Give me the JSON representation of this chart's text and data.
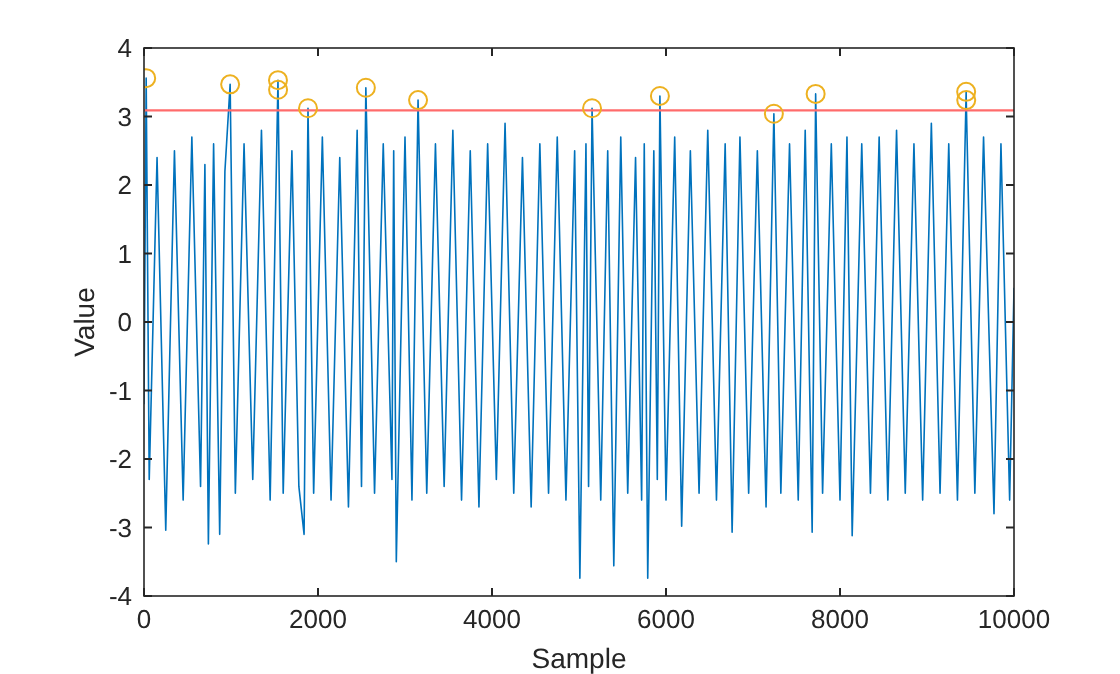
{
  "chart_data": {
    "type": "line",
    "xlabel": "Sample",
    "ylabel": "Value",
    "xlim": [
      0,
      10000
    ],
    "xticks": [
      0,
      2000,
      4000,
      6000,
      8000,
      10000
    ],
    "ylim": [
      -4,
      4
    ],
    "yticks": [
      -4,
      -3,
      -2,
      -1,
      0,
      1,
      2,
      3,
      4
    ],
    "grid": false,
    "series": [
      {
        "color": "#0072bd",
        "marker": "none",
        "x": [
          0,
          25,
          60,
          150,
          250,
          350,
          450,
          550,
          650,
          700,
          740,
          800,
          870,
          930,
          990,
          1050,
          1150,
          1250,
          1350,
          1450,
          1540,
          1541,
          1600,
          1700,
          1780,
          1840,
          1885,
          1950,
          2050,
          2150,
          2250,
          2350,
          2450,
          2500,
          2550,
          2650,
          2750,
          2850,
          2870,
          2900,
          3000,
          3080,
          3150,
          3250,
          3350,
          3450,
          3550,
          3650,
          3750,
          3850,
          3950,
          4050,
          4150,
          4250,
          4350,
          4450,
          4550,
          4650,
          4750,
          4850,
          4950,
          5010,
          5080,
          5110,
          5150,
          5250,
          5330,
          5400,
          5480,
          5560,
          5650,
          5720,
          5750,
          5790,
          5860,
          5900,
          5930,
          6000,
          6100,
          6180,
          6280,
          6380,
          6480,
          6580,
          6680,
          6760,
          6850,
          6950,
          7050,
          7150,
          7240,
          7320,
          7420,
          7520,
          7600,
          7680,
          7720,
          7800,
          7900,
          8000,
          8080,
          8140,
          8250,
          8350,
          8450,
          8550,
          8650,
          8750,
          8850,
          8950,
          9050,
          9150,
          9250,
          9350,
          9450,
          9451,
          9550,
          9650,
          9770,
          9850,
          9950,
          10000
        ],
        "values": [
          -1.2,
          3.56,
          -2.3,
          2.4,
          -3.04,
          2.5,
          -2.6,
          2.7,
          -2.4,
          2.3,
          -3.24,
          2.6,
          -3.1,
          2.2,
          3.47,
          -2.5,
          2.6,
          -2.3,
          2.8,
          -2.6,
          3.53,
          3.39,
          -2.5,
          2.5,
          -2.4,
          -3.1,
          3.12,
          -2.5,
          2.7,
          -2.6,
          2.4,
          -2.7,
          2.8,
          -2.4,
          3.42,
          -2.5,
          2.6,
          -2.3,
          2.5,
          -3.5,
          2.7,
          -2.6,
          3.24,
          -2.5,
          2.6,
          -2.4,
          2.8,
          -2.6,
          2.5,
          -2.7,
          2.6,
          -2.3,
          2.9,
          -2.5,
          2.4,
          -2.7,
          2.6,
          -2.5,
          2.7,
          -2.6,
          2.5,
          -3.74,
          2.6,
          -2.4,
          3.12,
          -2.6,
          2.5,
          -3.56,
          2.7,
          -2.5,
          2.4,
          -2.6,
          2.6,
          -3.74,
          2.5,
          -2.3,
          3.3,
          -2.6,
          2.7,
          -2.98,
          2.5,
          -2.5,
          2.8,
          -2.6,
          2.6,
          -3.07,
          2.7,
          -2.5,
          2.5,
          -2.7,
          3.04,
          -2.5,
          2.6,
          -2.6,
          2.8,
          -3.07,
          3.33,
          -2.5,
          2.6,
          -2.6,
          2.7,
          -3.12,
          2.6,
          -2.5,
          2.7,
          -2.6,
          2.8,
          -2.5,
          2.6,
          -2.6,
          2.9,
          -2.5,
          2.6,
          -2.6,
          3.36,
          3.24,
          -2.5,
          2.7,
          -2.8,
          2.6,
          -2.6,
          0.5
        ]
      },
      {
        "type": "scatter",
        "color": "#edb120",
        "marker": "circle",
        "x": [
          25,
          990,
          1540,
          1541,
          1885,
          2550,
          3150,
          5150,
          5930,
          7240,
          7720,
          9450,
          9451
        ],
        "values": [
          3.56,
          3.47,
          3.53,
          3.39,
          3.12,
          3.42,
          3.24,
          3.12,
          3.3,
          3.04,
          3.33,
          3.36,
          3.24
        ]
      }
    ],
    "ref_lines": [
      {
        "axis": "y",
        "value": 3.09,
        "color": "#ff6b6b",
        "line_style": "solid"
      }
    ]
  }
}
